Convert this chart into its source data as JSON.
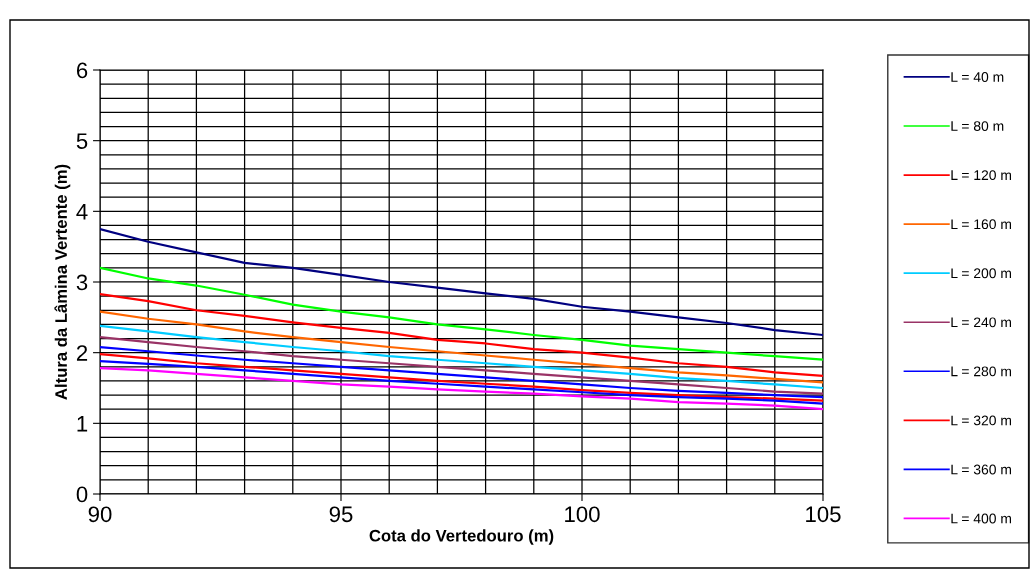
{
  "chart_data": {
    "type": "line",
    "xlabel": "Cota do Vertedouro (m)",
    "ylabel": "Altura da Lâmina Vertente (m)",
    "x": [
      90,
      91,
      92,
      93,
      94,
      95,
      96,
      97,
      98,
      99,
      100,
      101,
      102,
      103,
      104,
      105
    ],
    "xlim": [
      90,
      105
    ],
    "xticks": [
      90,
      95,
      100,
      105
    ],
    "ylim": [
      0,
      6
    ],
    "yticks": [
      0,
      1,
      2,
      3,
      4,
      5,
      6
    ],
    "grid": true,
    "legend": "right",
    "marker": "none",
    "line_style": "solid",
    "series": [
      {
        "name": "L = 40 m",
        "color": "#000080",
        "values": [
          3.75,
          3.57,
          3.42,
          3.27,
          3.2,
          3.1,
          3.0,
          2.92,
          2.84,
          2.76,
          2.65,
          2.58,
          2.5,
          2.42,
          2.32,
          2.25
        ]
      },
      {
        "name": "L = 80 m",
        "color": "#00ff00",
        "values": [
          3.2,
          3.05,
          2.95,
          2.82,
          2.68,
          2.58,
          2.5,
          2.4,
          2.33,
          2.25,
          2.18,
          2.1,
          2.05,
          2.0,
          1.95,
          1.9
        ]
      },
      {
        "name": "L = 120 m",
        "color": "#ff0000",
        "values": [
          2.83,
          2.73,
          2.6,
          2.52,
          2.43,
          2.35,
          2.28,
          2.18,
          2.13,
          2.05,
          2.0,
          1.93,
          1.85,
          1.8,
          1.72,
          1.67
        ]
      },
      {
        "name": "L = 160 m",
        "color": "#ff6600",
        "values": [
          2.58,
          2.48,
          2.4,
          2.3,
          2.22,
          2.15,
          2.08,
          2.02,
          1.96,
          1.9,
          1.84,
          1.78,
          1.72,
          1.68,
          1.63,
          1.58
        ]
      },
      {
        "name": "L = 200 m",
        "color": "#00ccff",
        "values": [
          2.38,
          2.3,
          2.22,
          2.15,
          2.08,
          2.02,
          1.95,
          1.9,
          1.85,
          1.8,
          1.75,
          1.7,
          1.64,
          1.6,
          1.55,
          1.5
        ]
      },
      {
        "name": "L = 240 m",
        "color": "#993366",
        "values": [
          2.22,
          2.15,
          2.08,
          2.02,
          1.95,
          1.9,
          1.85,
          1.8,
          1.75,
          1.7,
          1.65,
          1.6,
          1.55,
          1.5,
          1.45,
          1.42
        ]
      },
      {
        "name": "L = 280 m",
        "color": "#0000ff",
        "values": [
          2.08,
          2.02,
          1.96,
          1.9,
          1.85,
          1.8,
          1.75,
          1.7,
          1.65,
          1.6,
          1.55,
          1.5,
          1.46,
          1.43,
          1.4,
          1.37
        ]
      },
      {
        "name": "L = 320 m",
        "color": "#ff0000",
        "values": [
          1.98,
          1.92,
          1.85,
          1.8,
          1.75,
          1.7,
          1.65,
          1.6,
          1.56,
          1.52,
          1.47,
          1.43,
          1.4,
          1.37,
          1.35,
          1.32
        ]
      },
      {
        "name": "L = 360 m",
        "color": "#0000ff",
        "values": [
          1.88,
          1.84,
          1.8,
          1.75,
          1.7,
          1.65,
          1.6,
          1.56,
          1.52,
          1.48,
          1.44,
          1.4,
          1.37,
          1.35,
          1.32,
          1.28
        ]
      },
      {
        "name": "L = 400 m",
        "color": "#ff00ff",
        "values": [
          1.78,
          1.75,
          1.7,
          1.65,
          1.6,
          1.55,
          1.52,
          1.48,
          1.45,
          1.42,
          1.38,
          1.35,
          1.3,
          1.28,
          1.25,
          1.2
        ]
      }
    ]
  }
}
